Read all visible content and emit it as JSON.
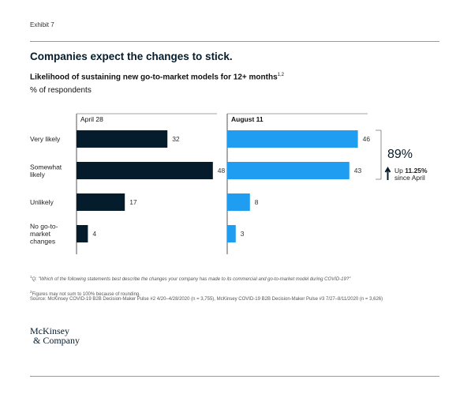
{
  "exhibit_label": "Exhibit 7",
  "headline": "Companies expect the changes to stick.",
  "subtitle": "Likelihood of sustaining new go-to-market models for 12+ months",
  "subtitle_sup": "1,2",
  "unit_label": "% of respondents",
  "chart_data": {
    "type": "bar",
    "orientation": "horizontal",
    "categories": [
      "Very likely",
      "Somewhat likely",
      "Unlikely",
      "No go-to-market changes"
    ],
    "category_lines": [
      [
        "Very likely"
      ],
      [
        "Somewhat",
        "likely"
      ],
      [
        "Unlikely"
      ],
      [
        "No go-to-",
        "market",
        "changes"
      ]
    ],
    "series": [
      {
        "name": "April 28",
        "values": [
          32,
          48,
          17,
          4
        ],
        "color": "#051c2c"
      },
      {
        "name": "August 11",
        "values": [
          46,
          43,
          8,
          3
        ],
        "color": "#1f9df1"
      }
    ],
    "annotation": {
      "value": "89%",
      "prefix": "Up ",
      "change": "11.25%",
      "suffix": "since April",
      "bracket_categories": [
        "Very likely",
        "Somewhat likely"
      ]
    }
  },
  "footnotes": {
    "fn1_marker": "1",
    "fn1": "Q: \"Which of the following statements best describe the changes your company has made to its commercial and go-to-market model during COVID-19?\"",
    "fn2_marker": "2",
    "fn2": "Figures may not sum to 100% because of rounding.",
    "source": "Source: McKinsey COVID-19 B2B Decision-Maker Pulse #2 4/20–4/28/2020 (n = 3,755), McKinsey COVID-19 B2B Decision-Maker Pulse #3 7/27–8/11/2020 (n = 3,626)"
  },
  "logo": {
    "line1": "McKinsey",
    "line2": "& Company"
  }
}
